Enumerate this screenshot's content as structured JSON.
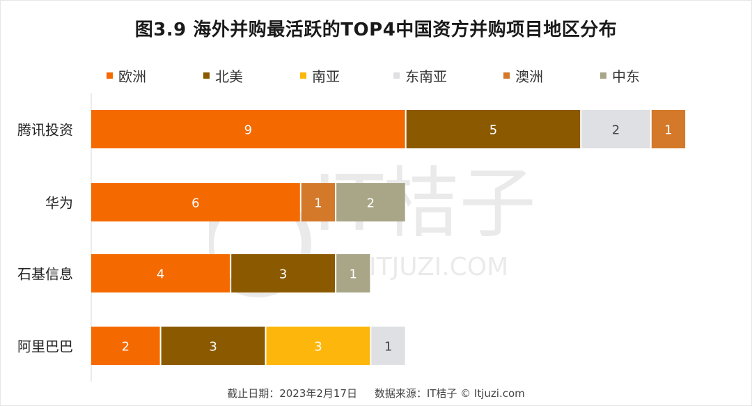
{
  "title": "图3.9  海外并购最活跃的TOP4中国资方并购项目地区分布",
  "footer": {
    "date": "截止日期：2023年2月17日",
    "source": "数据来源：IT桔子 © Itjuzi.com"
  },
  "watermark": {
    "brand": "IT桔子",
    "site": "ITJUZI.COM"
  },
  "chart_data": {
    "type": "bar",
    "orientation": "horizontal",
    "stacked": true,
    "categories": [
      "腾讯投资",
      "华为",
      "石基信息",
      "阿里巴巴"
    ],
    "series": [
      {
        "name": "欧洲",
        "color": "#f56a00",
        "values": [
          9,
          6,
          4,
          2
        ]
      },
      {
        "name": "北美",
        "color": "#8b5a00",
        "values": [
          5,
          0,
          3,
          3
        ]
      },
      {
        "name": "南亚",
        "color": "#fdb70c",
        "values": [
          0,
          0,
          0,
          3
        ]
      },
      {
        "name": "东南亚",
        "color": "#dfe0e4",
        "values": [
          2,
          0,
          0,
          1
        ]
      },
      {
        "name": "澳洲",
        "color": "#d4782a",
        "values": [
          1,
          1,
          0,
          0
        ]
      },
      {
        "name": "中东",
        "color": "#a8a687",
        "values": [
          0,
          2,
          1,
          0
        ]
      }
    ],
    "legend_position": "top",
    "grid": false,
    "data_labels": true
  }
}
